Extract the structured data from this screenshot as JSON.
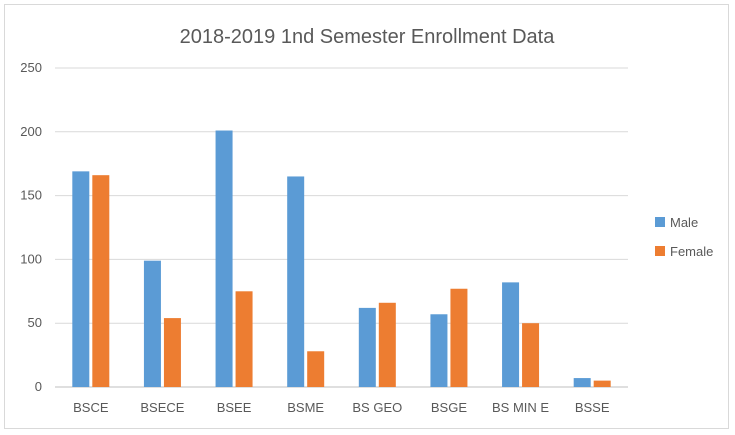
{
  "chart_data": {
    "type": "bar",
    "title": "2018-2019 1nd Semester Enrollment Data",
    "categories": [
      "BSCE",
      "BSECE",
      "BSEE",
      "BSME",
      "BS GEO",
      "BSGE",
      "BS MIN E",
      "BSSE"
    ],
    "series": [
      {
        "name": "Male",
        "values": [
          169,
          99,
          201,
          165,
          62,
          57,
          82,
          7
        ],
        "color": "#5b9bd5"
      },
      {
        "name": "Female",
        "values": [
          166,
          54,
          75,
          28,
          66,
          77,
          50,
          5
        ],
        "color": "#ed7d31"
      }
    ],
    "y_ticks": [
      "0",
      "50",
      "100",
      "150",
      "200",
      "250"
    ],
    "ylim": [
      0,
      250
    ],
    "grid": true,
    "legend_position": "right"
  }
}
